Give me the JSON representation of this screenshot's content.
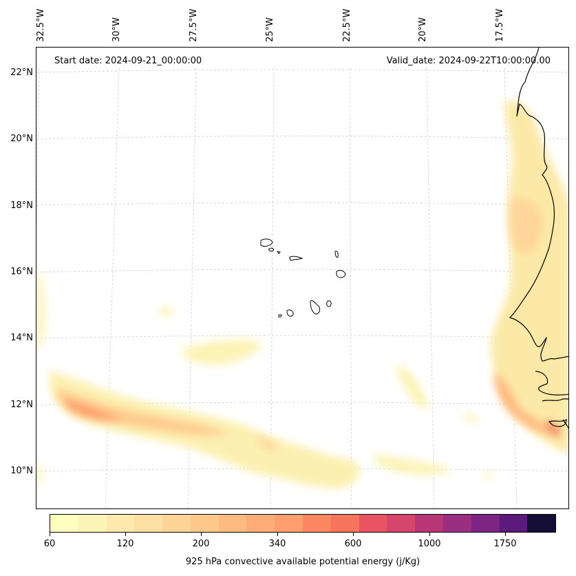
{
  "map": {
    "start_date": "Start date: 2024-09-21_00:00:00",
    "valid_date": "Valid_date: 2024-09-22T10:00:00.00",
    "lon_labels": [
      "32.5°W",
      "30°W",
      "27.5°W",
      "25°W",
      "22.5°W",
      "20°W",
      "17.5°W"
    ],
    "lat_labels": [
      "22°N",
      "20°N",
      "18°N",
      "16°N",
      "14°N",
      "12°N",
      "10°N"
    ],
    "features": [
      "Cape Verde islands",
      "West African coastline"
    ],
    "field": "925 hPa convective available potential energy"
  },
  "colorbar": {
    "label": "925 hPa convective available potential energy (j/Kg)",
    "tick_labels": [
      "60",
      "120",
      "200",
      "340",
      "600",
      "1000",
      "1750"
    ],
    "colors": [
      "#fcfdbf",
      "#fcf3b6",
      "#fde9ad",
      "#fedfa3",
      "#fed496",
      "#fec98a",
      "#febb81",
      "#fead77",
      "#fe9f6d",
      "#fb8761",
      "#f6745c",
      "#e95462",
      "#d6456c",
      "#b73779",
      "#9b2e7e",
      "#7e2482",
      "#5c1a7c",
      "#140e36"
    ]
  }
}
